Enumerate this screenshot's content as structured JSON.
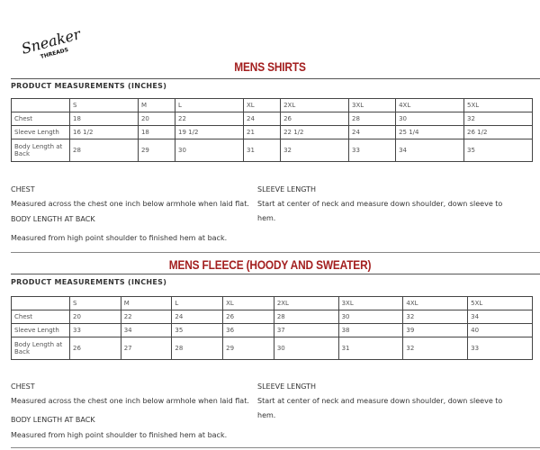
{
  "logo": "Sneaker Threads",
  "sections": [
    {
      "title": "MENS SHIRTS",
      "subtitle": "PRODUCT MEASUREMENTS (INCHES)",
      "headers": [
        "",
        "S",
        "M",
        "L",
        "XL",
        "2XL",
        "3XL",
        "4XL",
        "5XL"
      ],
      "rows": [
        [
          "Chest",
          "18",
          "20",
          "22",
          "24",
          "26",
          "28",
          "30",
          "32"
        ],
        [
          "Sleeve Length",
          "16 1/2",
          "18",
          "19 1/2",
          "21",
          "22 1/2",
          "24",
          "25 1/4",
          "26 1/2"
        ],
        [
          "Body Length at Back",
          "28",
          "29",
          "30",
          "31",
          "32",
          "33",
          "34",
          "35"
        ]
      ],
      "chest_h": "CHEST",
      "chest_t": "Measured across the chest one inch below armhole when laid flat.",
      "body_h": "BODY LENGTH AT BACK",
      "body_t": "Measured from high point shoulder to finished hem at back.",
      "sleeve_h": "SLEEVE LENGTH",
      "sleeve_t": "Start at center of neck and measure down shoulder, down sleeve to hem."
    },
    {
      "title": "MENS FLEECE (HOODY AND SWEATER)",
      "subtitle": "PRODUCT MEASUREMENTS (INCHES)",
      "headers": [
        "",
        "S",
        "M",
        "L",
        "XL",
        "2XL",
        "3XL",
        "4XL",
        "5XL"
      ],
      "rows": [
        [
          "Chest",
          "20",
          "22",
          "24",
          "26",
          "28",
          "30",
          "32",
          "34"
        ],
        [
          "Sleeve Length",
          "33",
          "34",
          "35",
          "36",
          "37",
          "38",
          "39",
          "40"
        ],
        [
          "Body Length at Back",
          "26",
          "27",
          "28",
          "29",
          "30",
          "31",
          "32",
          "33"
        ]
      ],
      "chest_h": "CHEST",
      "chest_t": "Measured across the chest one inch below armhole when laid flat.",
      "body_h": "BODY LENGTH AT BACK",
      "body_t": "Measured from high point shoulder to finished hem at back.",
      "sleeve_h": "SLEEVE LENGTH",
      "sleeve_t": "Start at center of neck and measure down shoulder, down sleeve to hem."
    }
  ]
}
